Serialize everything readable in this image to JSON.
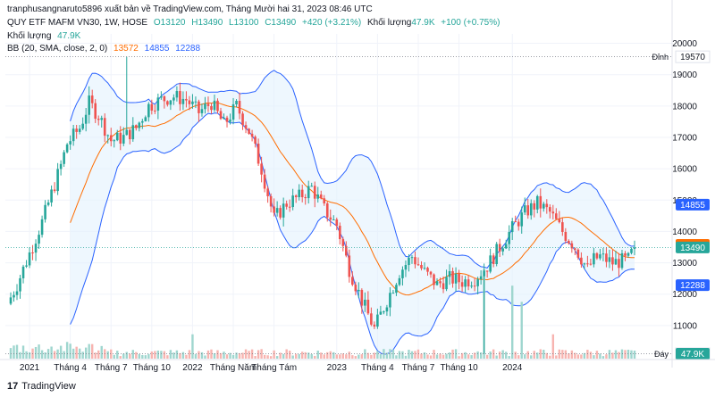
{
  "header": {
    "attribution": "tranphusangnaruto5896 xuất bản về TradingView.com, Tháng Mười hai 31, 2023 08:46 UTC"
  },
  "legend": {
    "symbol": "QUY ETF MAFM VN30, 1W, HOSE",
    "open": "O13120",
    "high": "H13490",
    "low": "L13100",
    "close": "C13490",
    "change": "+420 (+3.21%)",
    "vol_label": "Khối lượng",
    "vol_value": "47.9K",
    "vol_change": "+100 (+0.75%)",
    "vol_row_label": "Khối lượng",
    "vol_row_value": "47.9K",
    "bb_label": "BB (20, SMA, close, 2, 0)",
    "bb_mid": "13572",
    "bb_upper": "14855",
    "bb_lower": "12288"
  },
  "footer": {
    "brand": "TradingView"
  },
  "colors": {
    "up": "#26a69a",
    "down": "#ef5350",
    "basis": "#ff6d00",
    "band": "#2962ff",
    "band_fill": "#e3f2fd",
    "up_vol": "#9fd6cf",
    "down_vol": "#f7b4b0"
  },
  "chart_data": {
    "type": "candlestick",
    "ylim": [
      10000,
      20300
    ],
    "y_ticks": [
      11000,
      12000,
      13000,
      14000,
      15000,
      16000,
      17000,
      18000,
      19000,
      20000
    ],
    "x_ticks": [
      "2021",
      "Tháng 4",
      "Tháng 7",
      "Tháng 10",
      "2022",
      "Tháng Năm",
      "Tháng Tám",
      "2023",
      "Tháng 4",
      "Tháng 7",
      "Tháng 10",
      "2024"
    ],
    "price_labels": {
      "high_label": "Đỉnh",
      "high_value": 19570,
      "low_label": "Đáy",
      "low_value": 10100,
      "last": 13490,
      "bb_mid": 13572,
      "bb_upper": 14855,
      "bb_lower": 12288,
      "volume": "47.9K"
    },
    "anchors": {
      "x": [
        0,
        2,
        6,
        10,
        16,
        18,
        22,
        25,
        28,
        32,
        36,
        40,
        44,
        48,
        52,
        56,
        60,
        64,
        68,
        72,
        76,
        80,
        84,
        88,
        92,
        96,
        100,
        104,
        106,
        108,
        112,
        116,
        120,
        124,
        128,
        132,
        136,
        140,
        144,
        148,
        152,
        156,
        160,
        164,
        168,
        172,
        176,
        180,
        184,
        186,
        188,
        192,
        197,
        199
      ],
      "close": [
        11900,
        12300,
        13300,
        14300,
        16100,
        16800,
        17300,
        18100,
        17700,
        16900,
        17000,
        17300,
        18000,
        18200,
        18300,
        18200,
        17800,
        18100,
        17400,
        18000,
        17200,
        16000,
        14400,
        14900,
        15100,
        15400,
        14700,
        14200,
        13500,
        12800,
        11800,
        10900,
        11800,
        12700,
        13200,
        12700,
        12300,
        12500,
        12400,
        12500,
        12900,
        13500,
        14100,
        14600,
        14900,
        14600,
        14000,
        13500,
        12800,
        13100,
        13200,
        13000,
        13100,
        13490
      ]
    },
    "volume_overlay": {
      "spikes": [
        {
          "x": 58,
          "v": 300000
        },
        {
          "x": 151,
          "v": 1100000
        },
        {
          "x": 160,
          "v": 900000
        },
        {
          "x": 163,
          "v": 700000
        },
        {
          "x": 173,
          "v": 300000
        }
      ]
    }
  }
}
